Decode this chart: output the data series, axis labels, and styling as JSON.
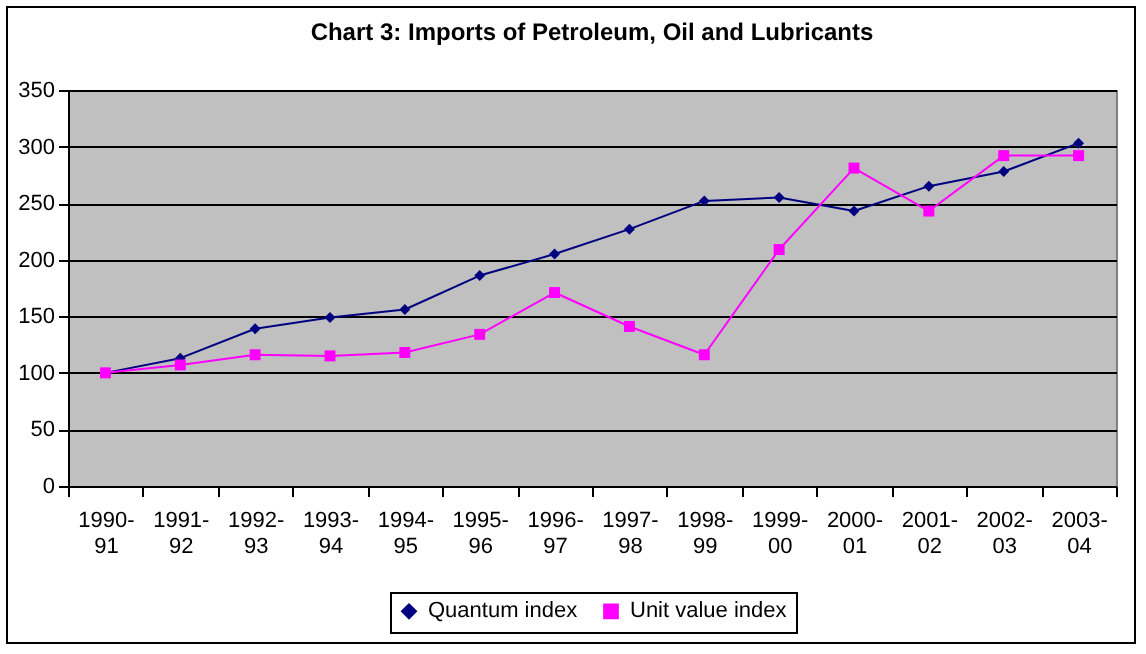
{
  "chart_data": {
    "type": "line",
    "title": "Chart 3: Imports of Petroleum, Oil and Lubricants",
    "categories": [
      "1990-91",
      "1991-92",
      "1992-93",
      "1993-94",
      "1994-95",
      "1995-96",
      "1996-97",
      "1997-98",
      "1998-99",
      "1999-00",
      "2000-01",
      "2001-02",
      "2002-03",
      "2003-04"
    ],
    "series": [
      {
        "name": "Quantum index",
        "color": "#000080",
        "marker": "diamond",
        "values": [
          100,
          113,
          139,
          149,
          156,
          186,
          205,
          227,
          252,
          255,
          243,
          265,
          278,
          303
        ]
      },
      {
        "name": "Unit value index",
        "color": "#ff00ff",
        "marker": "square",
        "values": [
          100,
          107,
          116,
          115,
          118,
          134,
          171,
          141,
          116,
          209,
          281,
          243,
          292,
          292
        ]
      }
    ],
    "ylim": [
      0,
      350
    ],
    "yticks": [
      0,
      50,
      100,
      150,
      200,
      250,
      300,
      350
    ],
    "grid": "y",
    "legend": "bottom"
  }
}
